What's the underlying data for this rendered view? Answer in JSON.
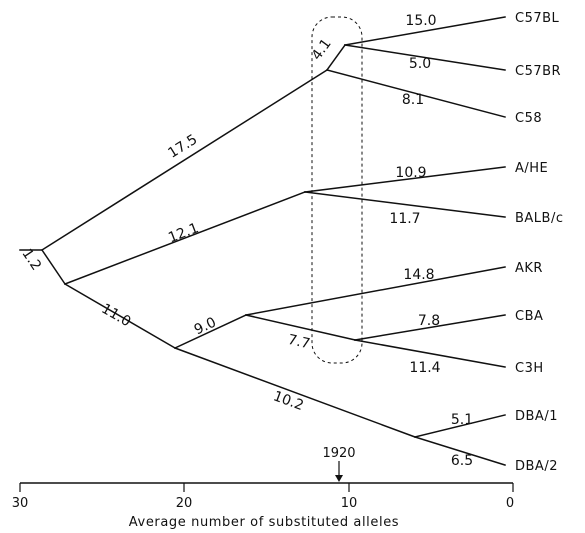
{
  "branch_lengths": {
    "root_stub": "",
    "root_split": "1.2",
    "to_c57_group": "17.5",
    "to_c57bl_c57br": "4.1",
    "c57bl": "15.0",
    "c57br": "5.0",
    "c58": "8.1",
    "to_ahe_balbc": "12.1",
    "ahe": "10.9",
    "balbc": "11.7",
    "to_lower_group": "11.0",
    "to_akr_cba_c3h": "9.0",
    "akr": "14.8",
    "to_cba_c3h": "7.7",
    "cba": "7.8",
    "c3h": "11.4",
    "to_dba": "10.2",
    "dba1": "5.1",
    "dba2": "6.5"
  },
  "leaves": {
    "c57bl": "C57BL",
    "c57br": "C57BR",
    "c58": "C58",
    "ahe": "A/HE",
    "balbc": "BALB/c",
    "akr": "AKR",
    "cba": "CBA",
    "c3h": "C3H",
    "dba1": "DBA/1",
    "dba2": "DBA/2"
  },
  "marker": {
    "label": "1920"
  },
  "axis": {
    "title": "Average number of substituted alleles",
    "ticks": [
      "30",
      "20",
      "10",
      "0"
    ]
  }
}
